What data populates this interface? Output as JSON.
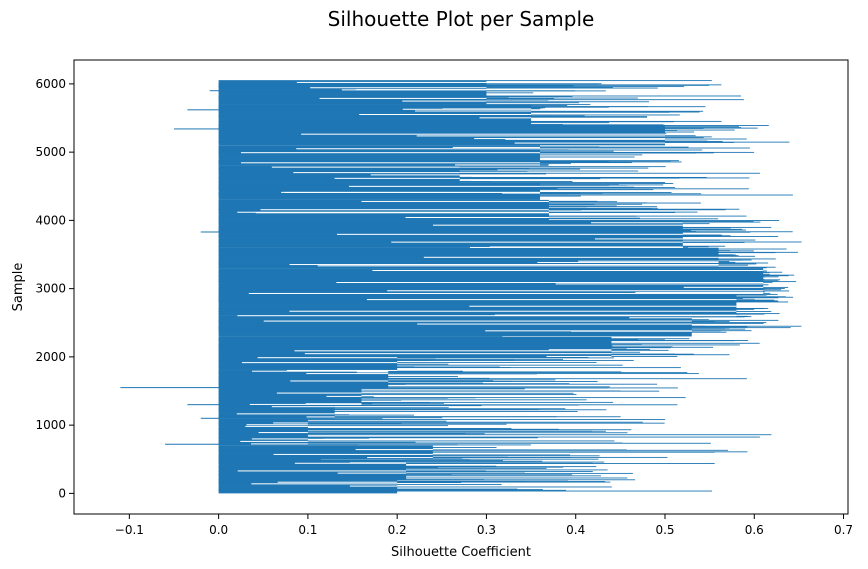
{
  "chart_data": {
    "type": "bar",
    "orientation": "horizontal",
    "title": "Silhouette Plot per Sample",
    "xlabel": "Silhouette Coefficient",
    "ylabel": "Sample",
    "xlim": [
      -0.162,
      0.705
    ],
    "ylim": [
      -302,
      6350
    ],
    "xticks": [
      -0.1,
      0.0,
      0.1,
      0.2,
      0.3,
      0.4,
      0.5,
      0.6,
      0.7
    ],
    "xtick_labels": [
      "−0.1",
      "0.0",
      "0.1",
      "0.2",
      "0.3",
      "0.4",
      "0.5",
      "0.6",
      "0.7"
    ],
    "yticks": [
      0,
      1000,
      2000,
      3000,
      4000,
      5000,
      6000
    ],
    "ytick_labels": [
      "0",
      "1000",
      "2000",
      "3000",
      "4000",
      "5000",
      "6000"
    ],
    "bar_color": "#1f77b4",
    "grid": false,
    "series": [
      {
        "sample_bands": [
          {
            "sample_start": 0,
            "sample_end": 200,
            "value": 0.2
          },
          {
            "sample_start": 200,
            "sample_end": 500,
            "value": 0.21
          },
          {
            "sample_start": 500,
            "sample_end": 700,
            "value": 0.24
          },
          {
            "sample_start": 700,
            "sample_end": 1100,
            "value": 0.1
          },
          {
            "sample_start": 1100,
            "sample_end": 1300,
            "value": 0.13
          },
          {
            "sample_start": 1300,
            "sample_end": 1550,
            "value": 0.16
          },
          {
            "sample_start": 1550,
            "sample_end": 1800,
            "value": 0.19
          },
          {
            "sample_start": 1800,
            "sample_end": 2000,
            "value": 0.2
          },
          {
            "sample_start": 2000,
            "sample_end": 2300,
            "value": 0.44
          },
          {
            "sample_start": 2300,
            "sample_end": 2600,
            "value": 0.53
          },
          {
            "sample_start": 2600,
            "sample_end": 2900,
            "value": 0.58
          },
          {
            "sample_start": 2900,
            "sample_end": 3300,
            "value": 0.61
          },
          {
            "sample_start": 3300,
            "sample_end": 3600,
            "value": 0.56
          },
          {
            "sample_start": 3600,
            "sample_end": 4000,
            "value": 0.52
          },
          {
            "sample_start": 4000,
            "sample_end": 4300,
            "value": 0.37
          },
          {
            "sample_start": 4300,
            "sample_end": 4550,
            "value": 0.36
          },
          {
            "sample_start": 4550,
            "sample_end": 4800,
            "value": 0.27
          },
          {
            "sample_start": 4800,
            "sample_end": 5100,
            "value": 0.36
          },
          {
            "sample_start": 5100,
            "sample_end": 5400,
            "value": 0.5
          },
          {
            "sample_start": 5400,
            "sample_end": 5700,
            "value": 0.35
          },
          {
            "sample_start": 5700,
            "sample_end": 6050,
            "value": 0.3
          }
        ],
        "spread_min": -0.11,
        "spread_max": 0.66
      }
    ]
  }
}
